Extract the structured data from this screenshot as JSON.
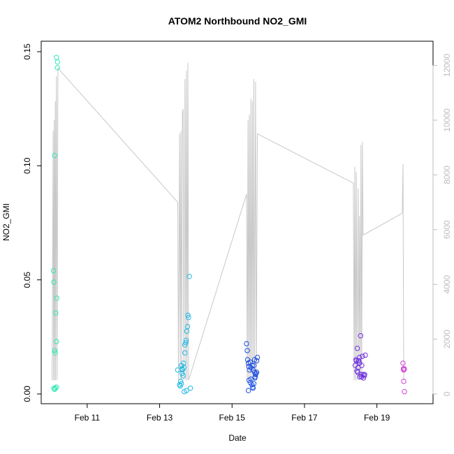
{
  "chart_data": {
    "type": "scatter",
    "title": "ATOM2 Northbound NO2_GMI",
    "xlabel": "Date",
    "ylabel": "NO2_GMI",
    "ylim": [
      0,
      0.15
    ],
    "y_ticks": [
      "0.00",
      "0.05",
      "0.10",
      "0.15"
    ],
    "y_tick_values": [
      0,
      0.05,
      0.1,
      0.15
    ],
    "xlim_days": [
      9.73,
      20.55
    ],
    "x_ticks": [
      "Feb 11",
      "Feb 13",
      "Feb 15",
      "Feb 17",
      "Feb 19"
    ],
    "x_tick_values": [
      11,
      13,
      15,
      17,
      19
    ],
    "secondary_ylim": [
      0,
      12500
    ],
    "secondary_y_ticks": [
      "0",
      "2000",
      "4000",
      "6000",
      "8000",
      "10000",
      "12000"
    ],
    "secondary_y_tick_values": [
      0,
      2000,
      4000,
      6000,
      8000,
      10000,
      12000
    ],
    "grid": false,
    "colors": {
      "altitude_line": "#c8c8c8",
      "flight1": "#2ee8b4",
      "flight2": "#20b8e4",
      "flight3": "#1e50e0",
      "flight4": "#7030e0",
      "flight5": "#d040d8"
    },
    "scatter_series": [
      {
        "color_key": "flight1",
        "points": [
          [
            10.1,
            0.002
          ],
          [
            10.12,
            0.0025
          ],
          [
            10.15,
            0.003
          ],
          [
            10.08,
            0.0025
          ],
          [
            10.1,
            0.019
          ],
          [
            10.12,
            0.018
          ],
          [
            10.15,
            0.023
          ],
          [
            10.13,
            0.0355
          ],
          [
            10.16,
            0.042
          ],
          [
            10.07,
            0.054
          ],
          [
            10.08,
            0.049
          ],
          [
            10.1,
            0.1045
          ],
          [
            10.15,
            0.1475
          ],
          [
            10.18,
            0.1455
          ],
          [
            10.18,
            0.143
          ]
        ]
      },
      {
        "color_key": "flight2",
        "points": [
          [
            13.5,
            0.0105
          ],
          [
            13.55,
            0.004
          ],
          [
            13.57,
            0.0035
          ],
          [
            13.58,
            0.0055
          ],
          [
            13.6,
            0.0125
          ],
          [
            13.62,
            0.011
          ],
          [
            13.65,
            0.008
          ],
          [
            13.66,
            0.0135
          ],
          [
            13.63,
            0.0105
          ],
          [
            13.67,
            0.0115
          ],
          [
            13.7,
            0.018
          ],
          [
            13.7,
            0.0215
          ],
          [
            13.72,
            0.0225
          ],
          [
            13.73,
            0.0235
          ],
          [
            13.75,
            0.0275
          ],
          [
            13.77,
            0.0295
          ],
          [
            13.78,
            0.0345
          ],
          [
            13.8,
            0.0335
          ],
          [
            13.82,
            0.0515
          ],
          [
            13.68,
            0.001
          ],
          [
            13.74,
            0.0015
          ],
          [
            13.85,
            0.0025
          ],
          [
            13.6,
            0.0045
          ],
          [
            13.62,
            0.009
          ]
        ]
      },
      {
        "color_key": "flight3",
        "points": [
          [
            15.4,
            0.022
          ],
          [
            15.42,
            0.019
          ],
          [
            15.43,
            0.015
          ],
          [
            15.45,
            0.0135
          ],
          [
            15.46,
            0.012
          ],
          [
            15.48,
            0.0105
          ],
          [
            15.5,
            0.014
          ],
          [
            15.52,
            0.0115
          ],
          [
            15.45,
            0.0015
          ],
          [
            15.47,
            0.006
          ],
          [
            15.5,
            0.005
          ],
          [
            15.52,
            0.0065
          ],
          [
            15.55,
            0.004
          ],
          [
            15.57,
            0.003
          ],
          [
            15.58,
            0.0025
          ],
          [
            15.6,
            0.0045
          ],
          [
            15.58,
            0.0105
          ],
          [
            15.6,
            0.0125
          ],
          [
            15.62,
            0.0095
          ],
          [
            15.62,
            0.015
          ],
          [
            15.64,
            0.0075
          ],
          [
            15.65,
            0.0085
          ],
          [
            15.66,
            0.009
          ],
          [
            15.68,
            0.0095
          ],
          [
            15.68,
            0.0145
          ],
          [
            15.7,
            0.016
          ],
          [
            15.56,
            0.0125
          ],
          [
            15.63,
            0.007
          ]
        ]
      },
      {
        "color_key": "flight4",
        "points": [
          [
            18.4,
            0.0125
          ],
          [
            18.42,
            0.015
          ],
          [
            18.43,
            0.0145
          ],
          [
            18.45,
            0.01
          ],
          [
            18.46,
            0.02
          ],
          [
            18.48,
            0.0115
          ],
          [
            18.5,
            0.0145
          ],
          [
            18.52,
            0.016
          ],
          [
            18.52,
            0.0135
          ],
          [
            18.55,
            0.0255
          ],
          [
            18.56,
            0.0085
          ],
          [
            18.58,
            0.0125
          ],
          [
            18.58,
            0.0075
          ],
          [
            18.6,
            0.0165
          ],
          [
            18.62,
            0.0085
          ],
          [
            18.63,
            0.007
          ],
          [
            18.65,
            0.008
          ],
          [
            18.66,
            0.0085
          ],
          [
            18.68,
            0.017
          ],
          [
            18.47,
            0.0095
          ],
          [
            18.53,
            0.0075
          ],
          [
            18.49,
            0.0145
          ]
        ]
      },
      {
        "color_key": "flight5",
        "points": [
          [
            19.72,
            0.0135
          ],
          [
            19.73,
            0.011
          ],
          [
            19.74,
            0.0105
          ],
          [
            19.76,
            0.011
          ],
          [
            19.74,
            0.0055
          ],
          [
            19.76,
            0.001
          ]
        ]
      }
    ],
    "altitude_series": {
      "secondary_axis": true,
      "points": [
        [
          10.03,
          500
        ],
        [
          10.06,
          9600
        ],
        [
          10.07,
          500
        ],
        [
          10.09,
          10000
        ],
        [
          10.1,
          500
        ],
        [
          10.12,
          10700
        ],
        [
          10.13,
          500
        ],
        [
          10.15,
          11600
        ],
        [
          10.17,
          500
        ],
        [
          10.19,
          11900
        ],
        [
          13.5,
          7000
        ],
        [
          13.52,
          500
        ],
        [
          13.55,
          9500
        ],
        [
          13.57,
          500
        ],
        [
          13.59,
          9600
        ],
        [
          13.61,
          500
        ],
        [
          13.63,
          10300
        ],
        [
          13.65,
          10400
        ],
        [
          13.67,
          500
        ],
        [
          13.7,
          11500
        ],
        [
          13.72,
          500
        ],
        [
          13.74,
          11800
        ],
        [
          13.76,
          500
        ],
        [
          13.78,
          12100
        ],
        [
          13.8,
          500
        ],
        [
          15.4,
          7300
        ],
        [
          15.42,
          500
        ],
        [
          15.44,
          10000
        ],
        [
          15.46,
          500
        ],
        [
          15.48,
          10200
        ],
        [
          15.5,
          500
        ],
        [
          15.52,
          10800
        ],
        [
          15.54,
          500
        ],
        [
          15.56,
          10700
        ],
        [
          15.58,
          500
        ],
        [
          15.6,
          11500
        ],
        [
          15.62,
          500
        ],
        [
          15.65,
          11400
        ],
        [
          15.67,
          500
        ],
        [
          15.7,
          9500
        ],
        [
          18.35,
          7700
        ],
        [
          18.37,
          500
        ],
        [
          18.39,
          8300
        ],
        [
          18.41,
          500
        ],
        [
          18.43,
          8100
        ],
        [
          18.45,
          500
        ],
        [
          18.48,
          7500
        ],
        [
          18.5,
          500
        ],
        [
          18.52,
          6500
        ],
        [
          18.54,
          500
        ],
        [
          18.56,
          9100
        ],
        [
          18.58,
          500
        ],
        [
          18.6,
          9200
        ],
        [
          18.62,
          5800
        ],
        [
          19.7,
          6600
        ],
        [
          19.72,
          8400
        ],
        [
          19.74,
          500
        ]
      ]
    }
  }
}
